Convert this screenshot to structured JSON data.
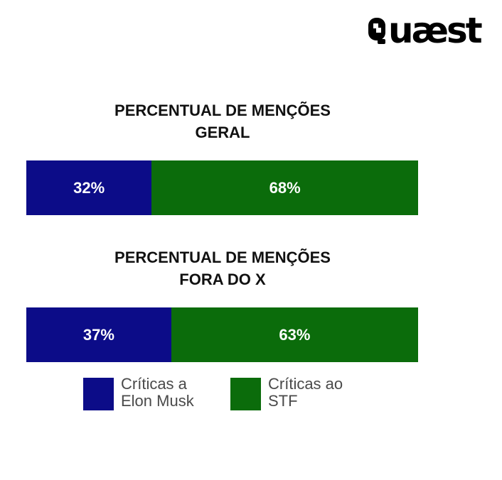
{
  "logo": {
    "text": "uæst"
  },
  "colors": {
    "elon": "#0c0c88",
    "stf": "#0b6c0b",
    "label": "#ffffff",
    "title": "#111111",
    "legend_text": "#4a4a4a"
  },
  "chart_data": [
    {
      "type": "bar",
      "orientation": "horizontal-stacked",
      "title_lines": [
        "PERCENTUAL DE MENÇÕES",
        "GERAL"
      ],
      "series": [
        {
          "name": "Críticas a Elon Musk",
          "value": 32,
          "label": "32%"
        },
        {
          "name": "Críticas ao STF",
          "value": 68,
          "label": "68%"
        }
      ]
    },
    {
      "type": "bar",
      "orientation": "horizontal-stacked",
      "title_lines": [
        "PERCENTUAL DE MENÇÕES",
        "FORA DO X"
      ],
      "series": [
        {
          "name": "Críticas a Elon Musk",
          "value": 37,
          "label": "37%"
        },
        {
          "name": "Críticas ao STF",
          "value": 63,
          "label": "63%"
        }
      ]
    }
  ],
  "legend": [
    {
      "lines": [
        "Críticas a",
        "Elon Musk"
      ]
    },
    {
      "lines": [
        "Críticas ao",
        "STF"
      ]
    }
  ]
}
